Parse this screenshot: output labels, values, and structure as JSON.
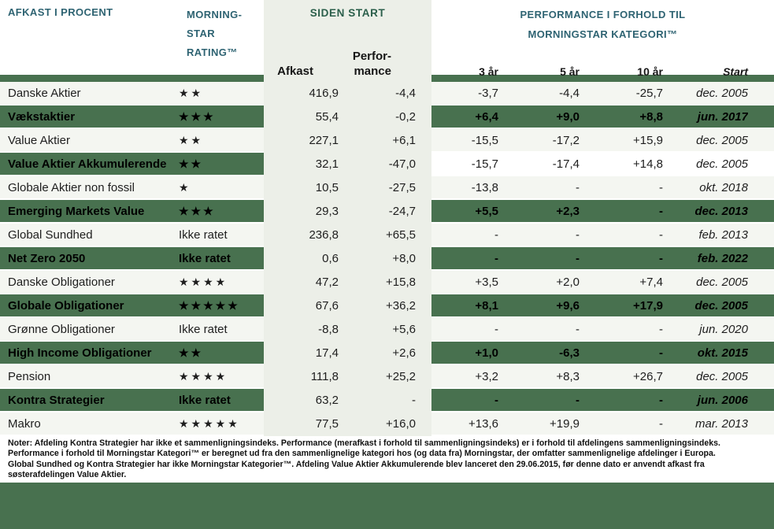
{
  "header": {
    "col_fund": "AFKAST I PROCENT",
    "col_rating_lines": [
      "MORNING-",
      "STAR",
      "RATING™"
    ],
    "group_siden_start": "SIDEN START",
    "col_afkast": "Afkast",
    "col_performance_lines": [
      "Perfor-",
      "mance"
    ],
    "group_morningstar_lines": [
      "PERFORMANCE I FORHOLD TIL",
      "MORNINGSTAR KATEGORI™"
    ],
    "col_3yr": "3 år",
    "col_5yr": "5 år",
    "col_10yr": "10 år",
    "col_start": "Start"
  },
  "colors": {
    "row_green": "#48714F",
    "row_light": "#F4F6F1",
    "column_block": "#ECEFE8",
    "header_teal": "#2E6372",
    "header_green": "#2B5F4B"
  },
  "rows": [
    {
      "name": "Danske Aktier",
      "rating": "★★",
      "afkast": "416,9",
      "performance": "-4,4",
      "y3": "-3,7",
      "y5": "-4,4",
      "y10": "-25,7",
      "start": "dec. 2005"
    },
    {
      "name": "Vækstaktier",
      "rating": "★★★",
      "afkast": "55,4",
      "performance": "-0,2",
      "y3": "+6,4",
      "y5": "+9,0",
      "y10": "+8,8",
      "start": "jun. 2017"
    },
    {
      "name": "Value Aktier",
      "rating": "★★",
      "afkast": "227,1",
      "performance": "+6,1",
      "y3": "-15,5",
      "y5": "-17,2",
      "y10": "+15,9",
      "start": "dec. 2005"
    },
    {
      "name": "Value Aktier Akkumulerende",
      "rating": "★★",
      "afkast": "32,1",
      "performance": "-47,0",
      "y3": "-15,7",
      "y5": "-17,4",
      "y10": "+14,8",
      "start": "dec. 2005"
    },
    {
      "name": "Globale Aktier non fossil",
      "rating": "★",
      "afkast": "10,5",
      "performance": "-27,5",
      "y3": "-13,8",
      "y5": "-",
      "y10": "-",
      "start": "okt. 2018"
    },
    {
      "name": "Emerging Markets Value",
      "rating": "★★★",
      "afkast": "29,3",
      "performance": "-24,7",
      "y3": "+5,5",
      "y5": "+2,3",
      "y10": "-",
      "start": "dec. 2013"
    },
    {
      "name": "Global Sundhed",
      "rating": "Ikke ratet",
      "afkast": "236,8",
      "performance": "+65,5",
      "y3": "-",
      "y5": "-",
      "y10": "-",
      "start": "feb. 2013"
    },
    {
      "name": "Net Zero 2050",
      "rating": "Ikke ratet",
      "afkast": "0,6",
      "performance": "+8,0",
      "y3": "-",
      "y5": "-",
      "y10": "-",
      "start": "feb. 2022"
    },
    {
      "name": "Danske Obligationer",
      "rating": "★★★★",
      "afkast": "47,2",
      "performance": "+15,8",
      "y3": "+3,5",
      "y5": "+2,0",
      "y10": "+7,4",
      "start": "dec. 2005"
    },
    {
      "name": "Globale Obligationer",
      "rating": "★★★★★",
      "afkast": "67,6",
      "performance": "+36,2",
      "y3": "+8,1",
      "y5": "+9,6",
      "y10": "+17,9",
      "start": "dec. 2005"
    },
    {
      "name": "Grønne Obligationer",
      "rating": "Ikke ratet",
      "afkast": "-8,8",
      "performance": "+5,6",
      "y3": "-",
      "y5": "-",
      "y10": "-",
      "start": "jun. 2020"
    },
    {
      "name": "High Income Obligationer",
      "rating": "★★",
      "afkast": "17,4",
      "performance": "+2,6",
      "y3": "+1,0",
      "y5": "-6,3",
      "y10": "-",
      "start": "okt. 2015"
    },
    {
      "name": "Pension",
      "rating": "★★★★",
      "afkast": "111,8",
      "performance": "+25,2",
      "y3": "+3,2",
      "y5": "+8,3",
      "y10": "+26,7",
      "start": "dec. 2005"
    },
    {
      "name": "Kontra Strategier",
      "rating": "Ikke ratet",
      "afkast": "63,2",
      "performance": "-",
      "y3": "-",
      "y5": "-",
      "y10": "-",
      "start": "jun. 2006"
    },
    {
      "name": "Makro",
      "rating": "★★★★★",
      "afkast": "77,5",
      "performance": "+16,0",
      "y3": "+13,6",
      "y5": "+19,9",
      "y10": "-",
      "start": "mar. 2013"
    }
  ],
  "notes": {
    "lines": [
      "Noter: Afdeling Kontra Strategier har ikke et sammenligningsindeks. Performance (merafkast i forhold til sammenligningsindeks) er i forhold til afdelingens sammenligningsindeks.",
      "Performance i forhold til Morningstar Kategori™ er beregnet ud fra den sammenlignelige kategori hos (og data fra) Morningstar, der omfatter sammenlignelige afdelinger i Europa.",
      "Global Sundhed og Kontra Strategier har ikke Morningstar Kategorier™. Afdeling Value Aktier Akkumulerende blev lanceret den 29.06.2015, før denne dato er anvendt afkast fra",
      "søsterafdelingen Value Aktier."
    ]
  }
}
